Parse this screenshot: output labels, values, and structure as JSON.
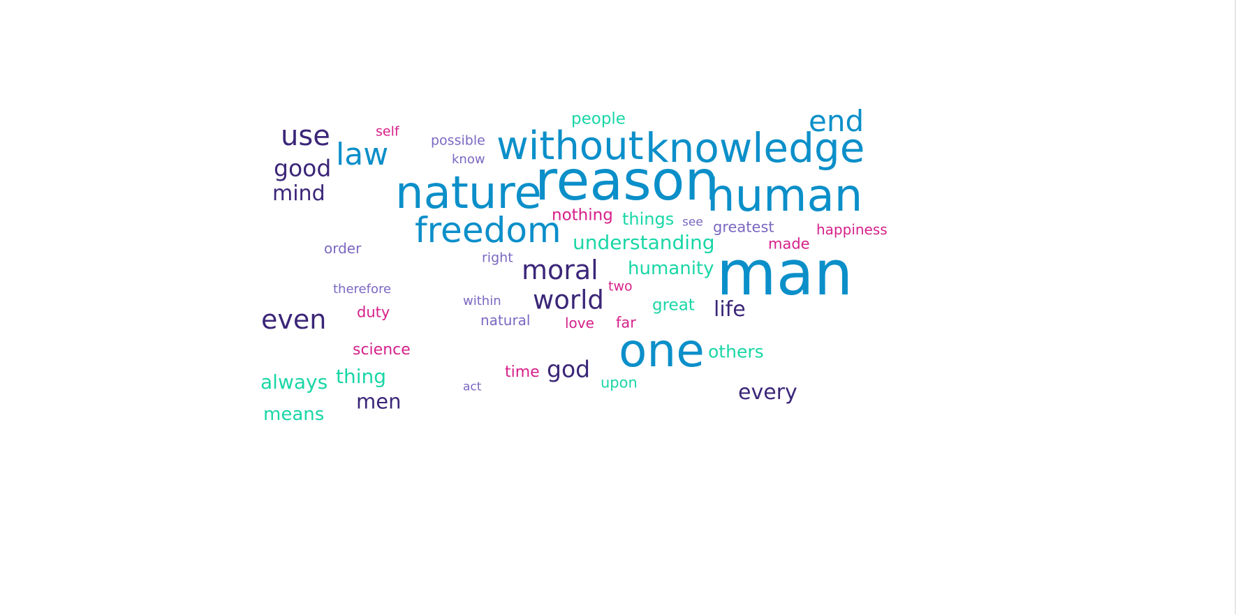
{
  "palette": {
    "blue": "#0b8fc9",
    "navy": "#3b2678",
    "teal": "#19d6a6",
    "magenta": "#d6208a",
    "lavender": "#7b67c1"
  },
  "words": [
    {
      "text": "man",
      "weight": 100,
      "color": "blue"
    },
    {
      "text": "reason",
      "weight": 93,
      "color": "blue"
    },
    {
      "text": "one",
      "weight": 80,
      "color": "blue"
    },
    {
      "text": "nature",
      "weight": 78,
      "color": "blue"
    },
    {
      "text": "human",
      "weight": 76,
      "color": "blue"
    },
    {
      "text": "knowledge",
      "weight": 69,
      "color": "blue"
    },
    {
      "text": "without",
      "weight": 67,
      "color": "blue"
    },
    {
      "text": "freedom",
      "weight": 60,
      "color": "blue"
    },
    {
      "text": "law",
      "weight": 52,
      "color": "blue"
    },
    {
      "text": "end",
      "weight": 50,
      "color": "blue"
    },
    {
      "text": "use",
      "weight": 47,
      "color": "navy"
    },
    {
      "text": "even",
      "weight": 45,
      "color": "navy"
    },
    {
      "text": "moral",
      "weight": 45,
      "color": "navy"
    },
    {
      "text": "world",
      "weight": 44,
      "color": "navy"
    },
    {
      "text": "good",
      "weight": 39,
      "color": "navy"
    },
    {
      "text": "god",
      "weight": 39,
      "color": "navy"
    },
    {
      "text": "mind",
      "weight": 35,
      "color": "navy"
    },
    {
      "text": "life",
      "weight": 35,
      "color": "navy"
    },
    {
      "text": "every",
      "weight": 35,
      "color": "navy"
    },
    {
      "text": "men",
      "weight": 34,
      "color": "navy"
    },
    {
      "text": "understanding",
      "weight": 33,
      "color": "teal"
    },
    {
      "text": "always",
      "weight": 33,
      "color": "teal"
    },
    {
      "text": "thing",
      "weight": 33,
      "color": "teal"
    },
    {
      "text": "humanity",
      "weight": 31,
      "color": "teal"
    },
    {
      "text": "means",
      "weight": 31,
      "color": "teal"
    },
    {
      "text": "others",
      "weight": 29,
      "color": "teal"
    },
    {
      "text": "things",
      "weight": 28,
      "color": "teal"
    },
    {
      "text": "people",
      "weight": 27,
      "color": "teal"
    },
    {
      "text": "great",
      "weight": 27,
      "color": "teal"
    },
    {
      "text": "upon",
      "weight": 25,
      "color": "teal"
    },
    {
      "text": "nothing",
      "weight": 27,
      "color": "magenta"
    },
    {
      "text": "science",
      "weight": 26,
      "color": "magenta"
    },
    {
      "text": "time",
      "weight": 26,
      "color": "magenta"
    },
    {
      "text": "duty",
      "weight": 25,
      "color": "magenta"
    },
    {
      "text": "far",
      "weight": 25,
      "color": "magenta"
    },
    {
      "text": "made",
      "weight": 25,
      "color": "magenta"
    },
    {
      "text": "happiness",
      "weight": 24,
      "color": "magenta"
    },
    {
      "text": "love",
      "weight": 23,
      "color": "magenta"
    },
    {
      "text": "two",
      "weight": 22,
      "color": "magenta"
    },
    {
      "text": "self",
      "weight": 22,
      "color": "magenta"
    },
    {
      "text": "greatest",
      "weight": 25,
      "color": "lavender"
    },
    {
      "text": "natural",
      "weight": 24,
      "color": "lavender"
    },
    {
      "text": "order",
      "weight": 23,
      "color": "lavender"
    },
    {
      "text": "right",
      "weight": 22,
      "color": "lavender"
    },
    {
      "text": "possible",
      "weight": 22,
      "color": "lavender"
    },
    {
      "text": "therefore",
      "weight": 21,
      "color": "lavender"
    },
    {
      "text": "within",
      "weight": 21,
      "color": "lavender"
    },
    {
      "text": "know",
      "weight": 21,
      "color": "lavender"
    },
    {
      "text": "see",
      "weight": 20,
      "color": "lavender"
    },
    {
      "text": "act",
      "weight": 20,
      "color": "lavender"
    }
  ]
}
